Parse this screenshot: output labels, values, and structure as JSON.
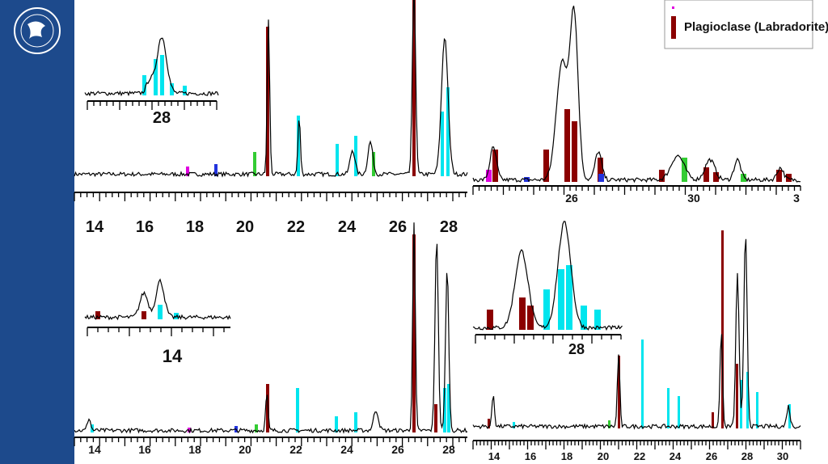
{
  "legend": {
    "label": "Plagioclase (Labradorite)"
  },
  "panels": [
    {
      "ticks": [
        "14",
        "16",
        "18",
        "20",
        "22",
        "24",
        "26",
        "28"
      ],
      "inset_label": "28"
    },
    {
      "ticks": [
        "26",
        "30",
        "3"
      ]
    },
    {
      "ticks": [
        "14",
        "16",
        "18",
        "20",
        "22",
        "24",
        "26",
        "28"
      ],
      "inset_label": "14"
    },
    {
      "ticks": [
        "14",
        "16",
        "18",
        "20",
        "22",
        "24",
        "26",
        "28",
        "30"
      ],
      "inset_label": "28"
    }
  ]
}
